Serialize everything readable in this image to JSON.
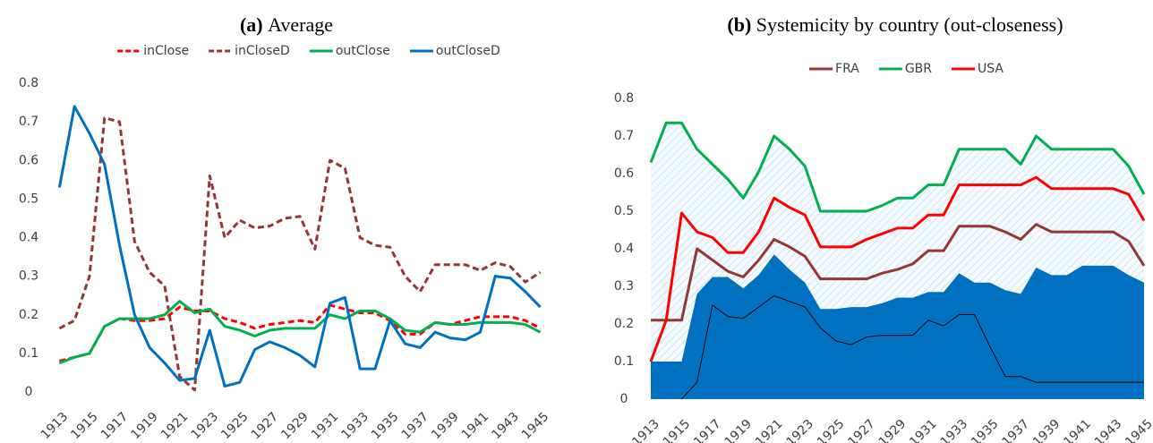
{
  "chart_data": [
    {
      "type": "line",
      "panel": "(a)",
      "title": "Average",
      "x": [
        1913,
        1914,
        1915,
        1916,
        1917,
        1918,
        1919,
        1920,
        1921,
        1922,
        1923,
        1924,
        1925,
        1926,
        1927,
        1928,
        1929,
        1930,
        1931,
        1932,
        1933,
        1934,
        1935,
        1936,
        1937,
        1938,
        1939,
        1940,
        1941,
        1942,
        1943,
        1944,
        1945
      ],
      "xlim": [
        1912.5,
        1945.5
      ],
      "xticks": [
        1913,
        1915,
        1917,
        1919,
        1921,
        1923,
        1925,
        1927,
        1929,
        1931,
        1933,
        1935,
        1937,
        1939,
        1941,
        1943,
        1945
      ],
      "ylim": [
        0,
        0.8
      ],
      "yticks": [
        0,
        0.1,
        0.2,
        0.3,
        0.4,
        0.5,
        0.6,
        0.7,
        0.8
      ],
      "grid": false,
      "legend": "top",
      "series": [
        {
          "name": "inClose",
          "color": "#ff0000",
          "style": "dashed",
          "values": [
            0.08,
            0.09,
            0.1,
            0.17,
            0.19,
            0.185,
            0.185,
            0.19,
            0.22,
            0.21,
            0.21,
            0.19,
            0.18,
            0.165,
            0.175,
            0.18,
            0.185,
            0.18,
            0.225,
            0.215,
            0.205,
            0.205,
            0.185,
            0.15,
            0.15,
            0.18,
            0.175,
            0.185,
            0.195,
            0.195,
            0.195,
            0.185,
            0.165
          ]
        },
        {
          "name": "inCloseD",
          "color": "#953735",
          "style": "dashed",
          "values": [
            0.165,
            0.185,
            0.3,
            0.71,
            0.7,
            0.39,
            0.31,
            0.275,
            0.04,
            0.005,
            0.56,
            0.4,
            0.445,
            0.425,
            0.43,
            0.45,
            0.455,
            0.37,
            0.6,
            0.58,
            0.4,
            0.38,
            0.375,
            0.3,
            0.26,
            0.33,
            0.33,
            0.33,
            0.315,
            0.335,
            0.325,
            0.285,
            0.31
          ]
        },
        {
          "name": "outClose",
          "color": "#00b050",
          "style": "solid",
          "values": [
            0.075,
            0.09,
            0.1,
            0.17,
            0.19,
            0.19,
            0.19,
            0.2,
            0.235,
            0.205,
            0.215,
            0.17,
            0.16,
            0.145,
            0.16,
            0.165,
            0.165,
            0.165,
            0.2,
            0.19,
            0.21,
            0.21,
            0.19,
            0.16,
            0.155,
            0.18,
            0.175,
            0.175,
            0.18,
            0.18,
            0.18,
            0.175,
            0.155
          ]
        },
        {
          "name": "outCloseD",
          "color": "#0070c0",
          "style": "solid",
          "values": [
            0.53,
            0.74,
            0.67,
            0.59,
            0.38,
            0.2,
            0.115,
            0.075,
            0.03,
            0.035,
            0.16,
            0.015,
            0.025,
            0.11,
            0.13,
            0.115,
            0.095,
            0.065,
            0.23,
            0.245,
            0.06,
            0.06,
            0.185,
            0.125,
            0.115,
            0.155,
            0.14,
            0.135,
            0.155,
            0.3,
            0.295,
            0.26,
            0.22
          ]
        }
      ]
    },
    {
      "type": "line",
      "panel": "(b)",
      "title": "Systemicity by country (out-closeness)",
      "x": [
        1913,
        1914,
        1915,
        1916,
        1917,
        1918,
        1919,
        1920,
        1921,
        1922,
        1923,
        1924,
        1925,
        1926,
        1927,
        1928,
        1929,
        1930,
        1931,
        1932,
        1933,
        1934,
        1935,
        1936,
        1937,
        1938,
        1939,
        1940,
        1941,
        1942,
        1943,
        1944,
        1945
      ],
      "xlim": [
        1913,
        1945
      ],
      "xticks": [
        1913,
        1915,
        1917,
        1919,
        1921,
        1923,
        1925,
        1927,
        1929,
        1931,
        1933,
        1935,
        1937,
        1939,
        1941,
        1943,
        1945
      ],
      "ylim": [
        0,
        0.8
      ],
      "yticks": [
        0,
        0.1,
        0.2,
        0.3,
        0.4,
        0.5,
        0.6,
        0.7,
        0.8
      ],
      "grid": false,
      "legend": "top",
      "series": [
        {
          "color": "#0070c0",
          "kind": "area",
          "values": [
            0.1,
            0.1,
            0.1,
            0.28,
            0.325,
            0.325,
            0.295,
            0.33,
            0.385,
            0.345,
            0.31,
            0.24,
            0.24,
            0.245,
            0.245,
            0.255,
            0.27,
            0.27,
            0.285,
            0.285,
            0.335,
            0.31,
            0.31,
            0.29,
            0.28,
            0.35,
            0.33,
            0.33,
            0.355,
            0.355,
            0.355,
            0.33,
            0.31
          ]
        },
        {
          "color": "#000000",
          "kind": "thin",
          "values": [
            null,
            null,
            0,
            0.045,
            0.25,
            0.22,
            0.215,
            0.245,
            0.275,
            0.26,
            0.245,
            0.19,
            0.155,
            0.145,
            0.165,
            0.17,
            0.17,
            0.17,
            0.21,
            0.195,
            0.225,
            0.225,
            0.14,
            0.06,
            0.06,
            0.045,
            0.045,
            0.045,
            0.045,
            0.045,
            0.045,
            0.045,
            0.045
          ]
        },
        {
          "name": "FRA",
          "color": "#953735",
          "values": [
            0.21,
            0.21,
            0.21,
            0.4,
            0.37,
            0.34,
            0.325,
            0.37,
            0.425,
            0.405,
            0.38,
            0.32,
            0.32,
            0.32,
            0.32,
            0.335,
            0.345,
            0.36,
            0.395,
            0.395,
            0.46,
            0.46,
            0.46,
            0.445,
            0.425,
            0.465,
            0.445,
            0.445,
            0.445,
            0.445,
            0.445,
            0.42,
            0.355
          ]
        },
        {
          "name": "GBR",
          "color": "#00b050",
          "hatch": true,
          "values": [
            0.63,
            0.735,
            0.735,
            0.665,
            0.625,
            0.585,
            0.535,
            0.605,
            0.7,
            0.665,
            0.62,
            0.5,
            0.5,
            0.5,
            0.5,
            0.515,
            0.535,
            0.535,
            0.57,
            0.57,
            0.665,
            0.665,
            0.665,
            0.665,
            0.625,
            0.7,
            0.665,
            0.665,
            0.665,
            0.665,
            0.665,
            0.62,
            0.545
          ]
        },
        {
          "name": "USA",
          "color": "#ff0000",
          "values": [
            0.1,
            0.21,
            0.495,
            0.445,
            0.43,
            0.39,
            0.39,
            0.445,
            0.535,
            0.51,
            0.49,
            0.405,
            0.405,
            0.405,
            0.425,
            0.44,
            0.455,
            0.455,
            0.49,
            0.49,
            0.57,
            0.57,
            0.57,
            0.57,
            0.57,
            0.59,
            0.56,
            0.56,
            0.56,
            0.56,
            0.56,
            0.545,
            0.475
          ]
        }
      ]
    }
  ]
}
